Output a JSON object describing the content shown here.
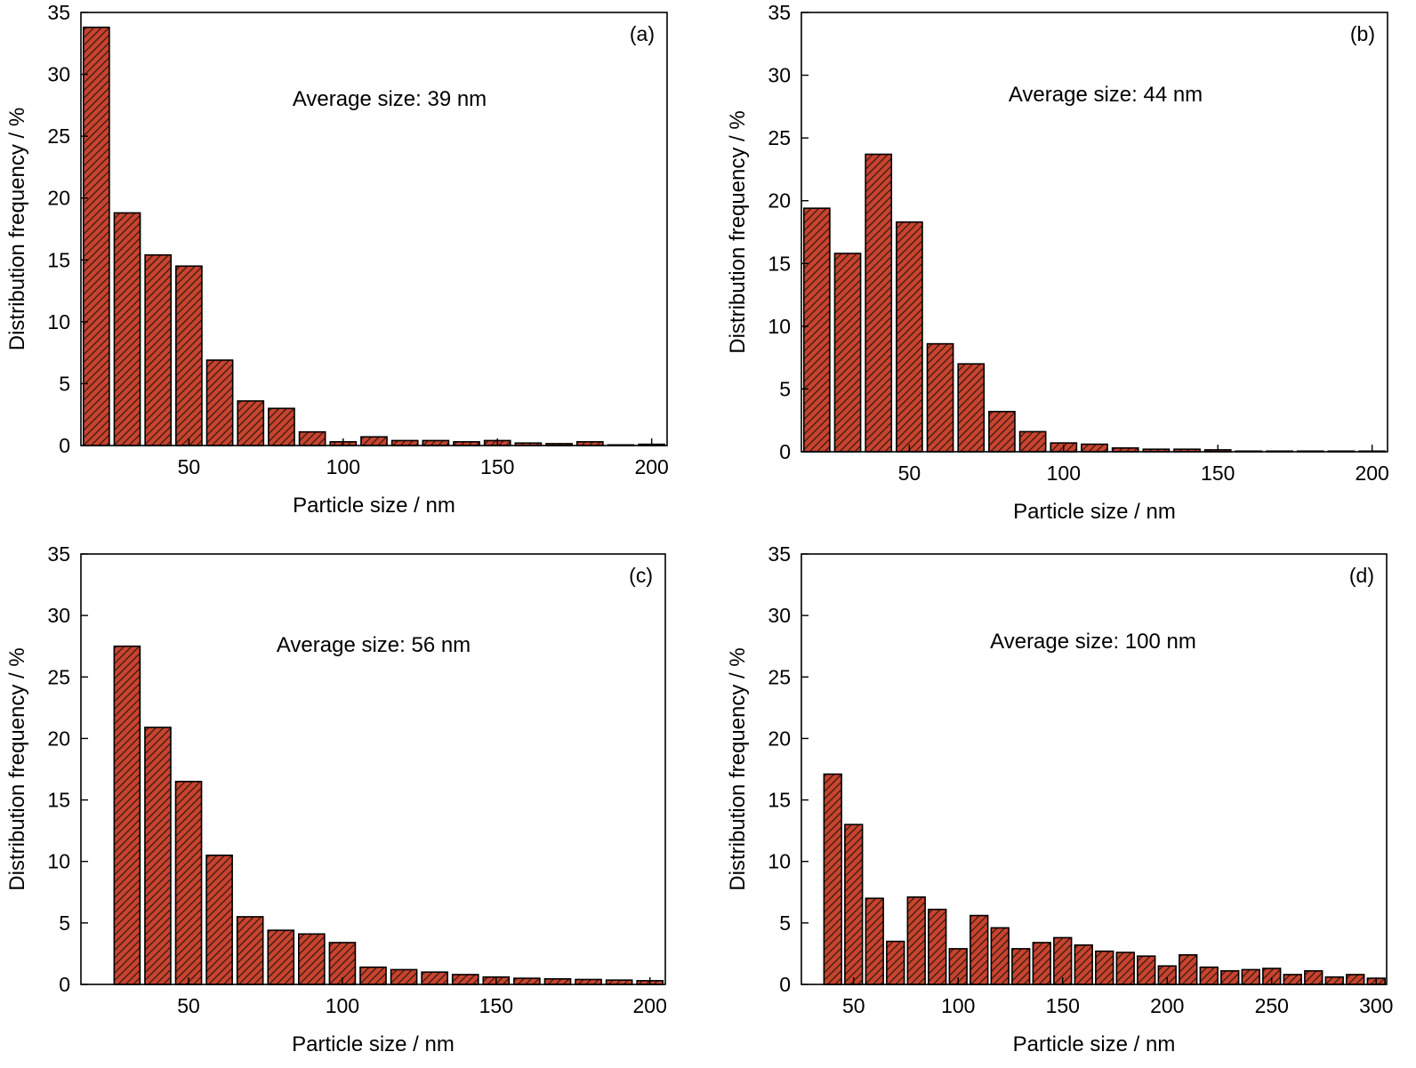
{
  "colors": {
    "bar_fill": "#c8442f",
    "hatch": "#3a1a12",
    "stroke": "#000000"
  },
  "chart_data": [
    {
      "type": "bar",
      "panel_label": "(a)",
      "annotation": "Average size: 39 nm",
      "xlabel": "Particle size / nm",
      "ylabel": "Distribution frequency / %",
      "xlim": [
        15,
        205
      ],
      "ylim": [
        0,
        35
      ],
      "xticks": [
        50,
        100,
        150,
        200
      ],
      "yticks": [
        0,
        5,
        10,
        15,
        20,
        25,
        30,
        35
      ],
      "bin_width": 10,
      "bars": [
        {
          "x": 20,
          "y": 33.8
        },
        {
          "x": 30,
          "y": 18.8
        },
        {
          "x": 40,
          "y": 15.4
        },
        {
          "x": 50,
          "y": 14.5
        },
        {
          "x": 60,
          "y": 6.9
        },
        {
          "x": 70,
          "y": 3.6
        },
        {
          "x": 80,
          "y": 3.0
        },
        {
          "x": 90,
          "y": 1.1
        },
        {
          "x": 100,
          "y": 0.3
        },
        {
          "x": 110,
          "y": 0.7
        },
        {
          "x": 120,
          "y": 0.4
        },
        {
          "x": 130,
          "y": 0.4
        },
        {
          "x": 140,
          "y": 0.3
        },
        {
          "x": 150,
          "y": 0.4
        },
        {
          "x": 160,
          "y": 0.2
        },
        {
          "x": 170,
          "y": 0.15
        },
        {
          "x": 180,
          "y": 0.3
        },
        {
          "x": 190,
          "y": 0.05
        },
        {
          "x": 200,
          "y": 0.1
        }
      ]
    },
    {
      "type": "bar",
      "panel_label": "(b)",
      "annotation": "Average size: 44 nm",
      "xlabel": "Particle size / nm",
      "ylabel": "Distribution frequency / %",
      "xlim": [
        15,
        205
      ],
      "ylim": [
        0,
        35
      ],
      "xticks": [
        50,
        100,
        150,
        200
      ],
      "yticks": [
        0,
        5,
        10,
        15,
        20,
        25,
        30,
        35
      ],
      "bin_width": 10,
      "bars": [
        {
          "x": 20,
          "y": 19.4
        },
        {
          "x": 30,
          "y": 15.8
        },
        {
          "x": 40,
          "y": 23.7
        },
        {
          "x": 50,
          "y": 18.3
        },
        {
          "x": 60,
          "y": 8.6
        },
        {
          "x": 70,
          "y": 7.0
        },
        {
          "x": 80,
          "y": 3.2
        },
        {
          "x": 90,
          "y": 1.6
        },
        {
          "x": 100,
          "y": 0.7
        },
        {
          "x": 110,
          "y": 0.6
        },
        {
          "x": 120,
          "y": 0.3
        },
        {
          "x": 130,
          "y": 0.2
        },
        {
          "x": 140,
          "y": 0.2
        },
        {
          "x": 150,
          "y": 0.15
        },
        {
          "x": 160,
          "y": 0.05
        },
        {
          "x": 170,
          "y": 0.05
        },
        {
          "x": 180,
          "y": 0.05
        },
        {
          "x": 190,
          "y": 0.05
        },
        {
          "x": 200,
          "y": 0.05
        }
      ]
    },
    {
      "type": "bar",
      "panel_label": "(c)",
      "annotation": "Average size: 56 nm",
      "xlabel": "Particle size / nm",
      "ylabel": "Distribution frequency / %",
      "xlim": [
        15,
        205
      ],
      "ylim": [
        0,
        35
      ],
      "xticks": [
        50,
        100,
        150,
        200
      ],
      "yticks": [
        0,
        5,
        10,
        15,
        20,
        25,
        30,
        35
      ],
      "bin_width": 10,
      "bars": [
        {
          "x": 30,
          "y": 27.5
        },
        {
          "x": 40,
          "y": 20.9
        },
        {
          "x": 50,
          "y": 16.5
        },
        {
          "x": 60,
          "y": 10.5
        },
        {
          "x": 70,
          "y": 5.5
        },
        {
          "x": 80,
          "y": 4.4
        },
        {
          "x": 90,
          "y": 4.1
        },
        {
          "x": 100,
          "y": 3.4
        },
        {
          "x": 110,
          "y": 1.4
        },
        {
          "x": 120,
          "y": 1.2
        },
        {
          "x": 130,
          "y": 1.0
        },
        {
          "x": 140,
          "y": 0.8
        },
        {
          "x": 150,
          "y": 0.6
        },
        {
          "x": 160,
          "y": 0.5
        },
        {
          "x": 170,
          "y": 0.45
        },
        {
          "x": 180,
          "y": 0.4
        },
        {
          "x": 190,
          "y": 0.35
        },
        {
          "x": 200,
          "y": 0.3
        }
      ]
    },
    {
      "type": "bar",
      "panel_label": "(d)",
      "annotation": "Average size: 100 nm",
      "xlabel": "Particle size / nm",
      "ylabel": "Distribution frequency / %",
      "xlim": [
        25,
        305
      ],
      "ylim": [
        0,
        35
      ],
      "xticks": [
        50,
        100,
        150,
        200,
        250,
        300
      ],
      "yticks": [
        0,
        5,
        10,
        15,
        20,
        25,
        30,
        35
      ],
      "bin_width": 10,
      "bars": [
        {
          "x": 40,
          "y": 17.1
        },
        {
          "x": 50,
          "y": 13.0
        },
        {
          "x": 60,
          "y": 7.0
        },
        {
          "x": 70,
          "y": 3.5
        },
        {
          "x": 80,
          "y": 7.1
        },
        {
          "x": 90,
          "y": 6.1
        },
        {
          "x": 100,
          "y": 2.9
        },
        {
          "x": 110,
          "y": 5.6
        },
        {
          "x": 120,
          "y": 4.6
        },
        {
          "x": 130,
          "y": 2.9
        },
        {
          "x": 140,
          "y": 3.4
        },
        {
          "x": 150,
          "y": 3.8
        },
        {
          "x": 160,
          "y": 3.2
        },
        {
          "x": 170,
          "y": 2.7
        },
        {
          "x": 180,
          "y": 2.6
        },
        {
          "x": 190,
          "y": 2.3
        },
        {
          "x": 200,
          "y": 1.5
        },
        {
          "x": 210,
          "y": 2.4
        },
        {
          "x": 220,
          "y": 1.4
        },
        {
          "x": 230,
          "y": 1.1
        },
        {
          "x": 240,
          "y": 1.2
        },
        {
          "x": 250,
          "y": 1.3
        },
        {
          "x": 260,
          "y": 0.8
        },
        {
          "x": 270,
          "y": 1.1
        },
        {
          "x": 280,
          "y": 0.6
        },
        {
          "x": 290,
          "y": 0.8
        },
        {
          "x": 300,
          "y": 0.5
        }
      ]
    }
  ]
}
